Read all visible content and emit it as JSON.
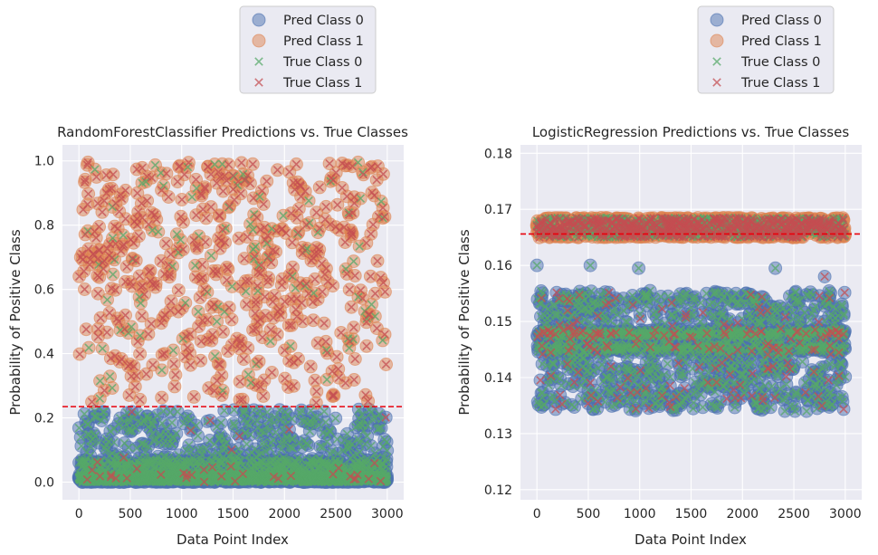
{
  "chart_data": [
    {
      "type": "scatter",
      "title": "RandomForestClassifier Predictions vs. True Classes",
      "xlabel": "Data Point Index",
      "ylabel": "Probability of Positive Class",
      "xlim": [
        -160,
        3160
      ],
      "ylim": [
        -0.055,
        1.05
      ],
      "x_ticks": [
        0,
        500,
        1000,
        1500,
        2000,
        2500,
        3000
      ],
      "y_ticks": [
        0.0,
        0.2,
        0.4,
        0.6,
        0.8,
        1.0
      ],
      "y_tick_labels": [
        "0.0",
        "0.2",
        "0.4",
        "0.6",
        "0.8",
        "1.0"
      ],
      "grid": true,
      "legend_position": "above plot, right of center",
      "legend": [
        "Pred Class 0",
        "Pred Class 1",
        "True Class 0",
        "True Class 1"
      ],
      "threshold": 0.235,
      "threshold_style": "red dashed horizontal line",
      "n_points": 3000,
      "pred_class_1": {
        "y_range": [
          0.24,
          1.0
        ],
        "count_approx": 570
      },
      "pred_class_0": {
        "y_range": [
          0.0,
          0.23
        ],
        "count_approx": 2430,
        "concentration": "mostly near 0.0-0.05"
      },
      "true_class_0_in_pred_1_approx": 110,
      "true_class_1_in_pred_0_approx": 30
    },
    {
      "type": "scatter",
      "title": "LogisticRegression Predictions vs. True Classes",
      "xlabel": "Data Point Index",
      "ylabel": "Probability of Positive Class",
      "xlim": [
        -160,
        3160
      ],
      "ylim": [
        0.1182,
        0.1815
      ],
      "x_ticks": [
        0,
        500,
        1000,
        1500,
        2000,
        2500,
        3000
      ],
      "y_ticks": [
        0.12,
        0.13,
        0.14,
        0.15,
        0.16,
        0.17,
        0.18
      ],
      "y_tick_labels": [
        "0.12",
        "0.13",
        "0.14",
        "0.15",
        "0.16",
        "0.17",
        "0.18"
      ],
      "grid": true,
      "legend_position": "above plot, right",
      "legend": [
        "Pred Class 0",
        "Pred Class 1",
        "True Class 0",
        "True Class 1"
      ],
      "threshold": 0.1656,
      "threshold_style": "red dashed horizontal line",
      "n_points": 3000,
      "pred_class_1": {
        "y_range": [
          0.165,
          0.1685
        ],
        "count_approx": 1400,
        "note": "dense band"
      },
      "pred_class_0": {
        "y_range": [
          0.134,
          0.1605
        ],
        "count_approx": 1600,
        "band_levels": [
          0.148,
          0.145,
          0.1475
        ]
      },
      "outlier_points": [
        [
          0,
          0.16
        ],
        [
          520,
          0.16
        ],
        [
          990,
          0.1595
        ],
        [
          2320,
          0.1595
        ],
        [
          2800,
          0.158
        ]
      ]
    }
  ],
  "colors": {
    "background": "#eaeaf2",
    "grid": "#ffffff",
    "pred_class_0": "#4c72b0",
    "pred_class_1": "#dd8452",
    "true_class_0": "#55a868",
    "true_class_1": "#c44e52",
    "threshold": "#e8000b",
    "text": "#262626"
  }
}
